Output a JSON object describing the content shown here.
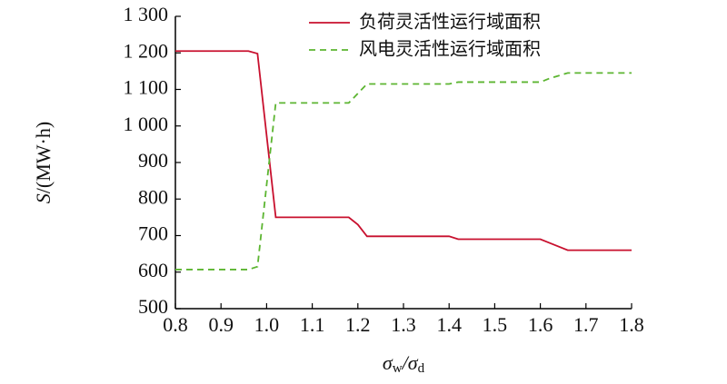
{
  "chart_data": {
    "type": "line",
    "xlabel": [
      "σ",
      "w",
      "/σ",
      "d"
    ],
    "ylabel": [
      "S",
      "/(MW·h)"
    ],
    "x": [
      0.8,
      0.96,
      0.98,
      1.02,
      1.18,
      1.2,
      1.22,
      1.4,
      1.42,
      1.6,
      1.62,
      1.66,
      1.8
    ],
    "series": [
      {
        "name": "负荷灵活性运行域面积",
        "color": "#c8102e",
        "dash": "solid",
        "values": [
          1205,
          1205,
          1198,
          750,
          750,
          730,
          698,
          698,
          690,
          690,
          680,
          660,
          660
        ]
      },
      {
        "name": "风电灵活性运行域面积",
        "color": "#5cb531",
        "dash": "dashed",
        "values": [
          607,
          607,
          615,
          1063,
          1063,
          1089,
          1115,
          1115,
          1120,
          1120,
          1130,
          1145,
          1145
        ]
      }
    ],
    "xlim": [
      0.8,
      1.8
    ],
    "xticks": [
      0.8,
      0.9,
      {
        "value": 1,
        "label": "1.0"
      },
      1.1,
      1.2,
      1.3,
      1.4,
      1.5,
      1.6,
      1.7,
      1.8
    ],
    "ylim": [
      500,
      1300
    ],
    "yticks": [
      500,
      600,
      700,
      800,
      900,
      {
        "value": 1000,
        "label": "1 000"
      },
      {
        "value": 1100,
        "label": "1 100"
      },
      {
        "value": 1200,
        "label": "1 200"
      },
      {
        "value": 1300,
        "label": "1 300"
      }
    ],
    "grid": false,
    "legend": "upper-right"
  }
}
